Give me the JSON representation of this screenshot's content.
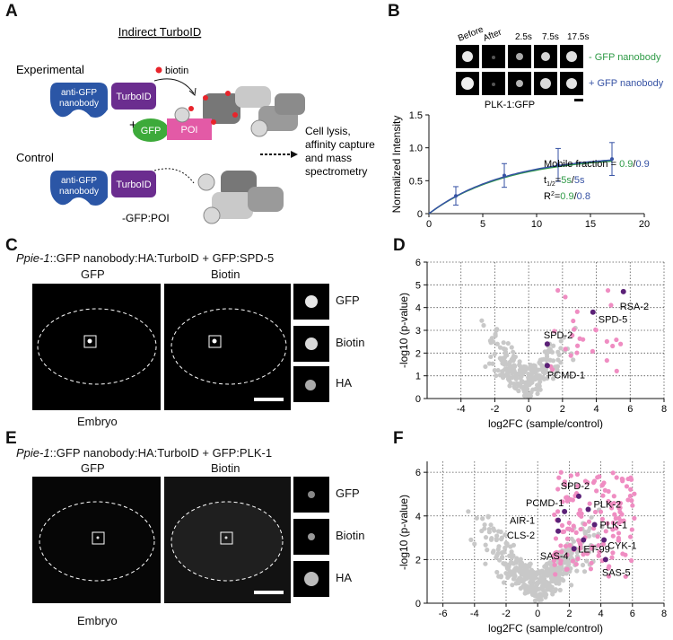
{
  "panel_letters": {
    "a": "A",
    "b": "B",
    "c": "C",
    "d": "D",
    "e": "E",
    "f": "F"
  },
  "panel_a": {
    "title": "Indirect TurboID",
    "experimental_label": "Experimental",
    "control_label": "Control",
    "nanobody_text": [
      "anti-GFP",
      "nanobody"
    ],
    "turboid_text": "TurboID",
    "biotin_text": "biotin",
    "plus_text": "+",
    "gfp_text": "GFP",
    "poi_text": "POI",
    "workflow_text": [
      "Cell lysis,",
      "affinity capture",
      "and mass",
      "spectrometry"
    ],
    "minus_text": "-GFP:POI",
    "colors": {
      "nanobody": "#2b56a6",
      "turboid": "#6b2d8f",
      "gfp": "#3daa3a",
      "poi": "#e35aa6",
      "biotin": "#e8242b"
    }
  },
  "panel_b": {
    "frame_labels": [
      "Before",
      "After",
      "2.5s",
      "7.5s",
      "17.5s"
    ],
    "row_labels": [
      "- GFP nanobody",
      "+ GFP nanobody"
    ],
    "caption": "PLK-1:GFP",
    "stats_labels": [
      "Mobile fraction = ",
      "t",
      "1/2",
      "=",
      "R",
      "2",
      "="
    ],
    "mobile_values": [
      "0.9",
      "0.9"
    ],
    "half_values": [
      "5s",
      "5s"
    ],
    "r2_values": [
      "0.9",
      "0.8"
    ],
    "colors": {
      "minus": "#2e9a46",
      "plus": "#3652a4"
    }
  },
  "chart_data": [
    {
      "type": "line",
      "xlabel": "time (s)",
      "ylabel": "Normalized Intensity",
      "xlim": [
        0,
        20
      ],
      "ylim": [
        0,
        1.5
      ],
      "xticks": [
        "0",
        "5",
        "10",
        "15",
        "20"
      ],
      "yticks": [
        "0",
        "0.5",
        "1.0",
        "1.5"
      ],
      "points": {
        "x": [
          2.5,
          7.0,
          12.0,
          17.0
        ],
        "y": [
          0.27,
          0.58,
          0.74,
          0.83
        ],
        "err": [
          0.14,
          0.18,
          0.25,
          0.25
        ]
      },
      "series": [
        {
          "name": "- GFP nanobody",
          "color": "#2e9a46",
          "mobile_fraction": 0.9,
          "t_half": 5
        },
        {
          "name": "+ GFP nanobody",
          "color": "#3652a4",
          "mobile_fraction": 0.9,
          "t_half": 5
        }
      ]
    },
    {
      "type": "scatter",
      "xlabel": "log2FC (sample/control)",
      "ylabel": "-log10 (p-value)",
      "xlim": [
        -6,
        8
      ],
      "ylim": [
        0,
        6
      ],
      "xticks": [
        "-4",
        "-2",
        "0",
        "2",
        "4",
        "6",
        "8"
      ],
      "yticks": [
        "0",
        "1",
        "2",
        "3",
        "4",
        "5",
        "6"
      ],
      "labeled_points": [
        {
          "label": "RSA-2",
          "x": 5.6,
          "y": 4.7
        },
        {
          "label": "SPD-5",
          "x": 3.8,
          "y": 3.8
        },
        {
          "label": "SPD-2",
          "x": 1.1,
          "y": 2.4
        },
        {
          "label": "PCMD-1",
          "x": 1.1,
          "y": 1.45
        }
      ],
      "colors": {
        "background": "#c8c8c8",
        "enriched": "#ef8dc2",
        "highlight": "#5b2177"
      }
    },
    {
      "type": "scatter",
      "xlabel": "log2FC (sample/control)",
      "ylabel": "-log10 (p-value)",
      "xlim": [
        -7,
        8
      ],
      "ylim": [
        0,
        6.5
      ],
      "xticks": [
        "-6",
        "-4",
        "-2",
        "0",
        "2",
        "4",
        "6",
        "8"
      ],
      "yticks": [
        "0",
        "2",
        "4",
        "6"
      ],
      "labeled_points": [
        {
          "label": "SPD-2",
          "x": 2.6,
          "y": 4.9
        },
        {
          "label": "PCMD-1",
          "x": 1.7,
          "y": 4.2
        },
        {
          "label": "PLK-2",
          "x": 3.2,
          "y": 4.3
        },
        {
          "label": "AIR-1",
          "x": 1.3,
          "y": 3.8
        },
        {
          "label": "PLK-1",
          "x": 3.6,
          "y": 3.6
        },
        {
          "label": "CLS-2",
          "x": 1.3,
          "y": 3.3
        },
        {
          "label": "CYK-1",
          "x": 4.2,
          "y": 2.9
        },
        {
          "label": "LET-99",
          "x": 2.9,
          "y": 2.9
        },
        {
          "label": "SAS-4",
          "x": 2.3,
          "y": 2.5
        },
        {
          "label": "SAS-5",
          "x": 4.3,
          "y": 2.0
        }
      ],
      "colors": {
        "background": "#c8c8c8",
        "enriched": "#ef8dc2",
        "highlight": "#5b2177"
      }
    }
  ],
  "panel_c": {
    "title_italic": "Ppie-1",
    "title_rest": "::GFP nanobody:HA:TurboID + GFP:SPD-5",
    "col_labels": [
      "GFP",
      "Biotin"
    ],
    "inset_labels": [
      "GFP",
      "Biotin",
      "HA"
    ],
    "embryo_label": "Embryo"
  },
  "panel_e": {
    "title_italic": "Ppie-1",
    "title_rest": "::GFP nanobody:HA:TurboID + GFP:PLK-1",
    "col_labels": [
      "GFP",
      "Biotin"
    ],
    "inset_labels": [
      "GFP",
      "Biotin",
      "HA"
    ],
    "embryo_label": "Embryo"
  }
}
